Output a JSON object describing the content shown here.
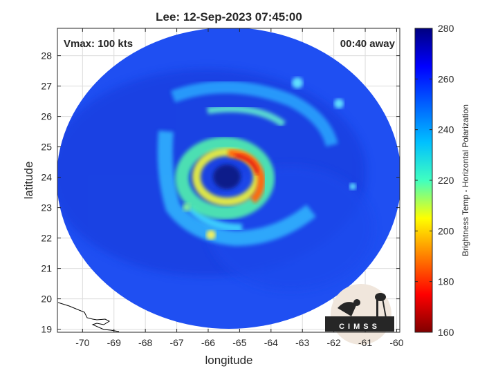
{
  "title": "Lee: 12-Sep-2023 07:45:00",
  "overlay": {
    "vmax": "Vmax: 100 kts",
    "time_away": "00:40 away"
  },
  "axes": {
    "xlabel": "longitude",
    "ylabel": "latitude",
    "xlim": [
      -70.8,
      -59.9
    ],
    "ylim": [
      18.9,
      28.9
    ],
    "xticks": [
      -70,
      -69,
      -68,
      -67,
      -66,
      -65,
      -64,
      -63,
      -62,
      -61,
      -60
    ],
    "yticks": [
      19,
      20,
      21,
      22,
      23,
      24,
      25,
      26,
      27,
      28
    ],
    "grid": true
  },
  "colorbar": {
    "label": "Brightness Temp - Horizontal Polarization",
    "range": [
      160,
      280
    ],
    "ticks": [
      160,
      180,
      200,
      220,
      240,
      260,
      280
    ],
    "colormap": "jet",
    "colors": [
      "#800000",
      "#ff0000",
      "#ffff00",
      "#00ffff",
      "#0000ff",
      "#000080"
    ]
  },
  "storm": {
    "name": "Lee",
    "vmax_kts": 100,
    "eye_center_lon": -65.4,
    "eye_center_lat": 24.1,
    "swath_center_lon": -65.2,
    "swath_center_lat": 23.9
  },
  "logo": {
    "text": "CIMSS"
  }
}
